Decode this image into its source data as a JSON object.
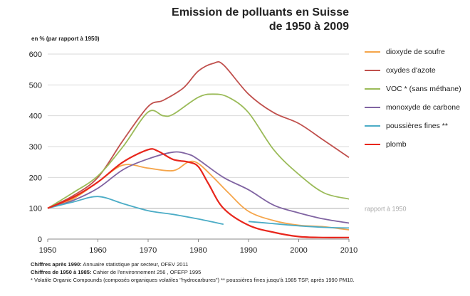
{
  "chart_data": {
    "type": "line",
    "title_line1": "Emission de polluants en Suisse",
    "title_line2": "de 1950 à 2009",
    "ylabel": "en % (par rapport à 1950)",
    "xlim": [
      1950,
      2010
    ],
    "ylim": [
      0,
      600
    ],
    "x_ticks": [
      "1950",
      "1960",
      "1970",
      "1980",
      "1990",
      "2000",
      "2010"
    ],
    "y_ticks": [
      "0",
      "100",
      "200",
      "300",
      "400",
      "500",
      "600"
    ],
    "grid": "horizontal",
    "legend_position": "right",
    "reference_line": {
      "y": 100,
      "label": "rapport à 1950",
      "color": "#bbbbbb"
    },
    "series": [
      {
        "name": "dioxyde de soufre",
        "color": "#f5a54a",
        "points": [
          [
            1950,
            100
          ],
          [
            1955,
            130
          ],
          [
            1960,
            185
          ],
          [
            1965,
            240
          ],
          [
            1970,
            230
          ],
          [
            1975,
            222
          ],
          [
            1978,
            250
          ],
          [
            1980,
            245
          ],
          [
            1983,
            200
          ],
          [
            1986,
            150
          ],
          [
            1990,
            90
          ],
          [
            1995,
            60
          ],
          [
            2000,
            45
          ],
          [
            2005,
            40
          ],
          [
            2010,
            30
          ]
        ]
      },
      {
        "name": "oxydes d'azote",
        "color": "#c0504d",
        "points": [
          [
            1950,
            100
          ],
          [
            1955,
            140
          ],
          [
            1960,
            200
          ],
          [
            1965,
            320
          ],
          [
            1970,
            430
          ],
          [
            1973,
            450
          ],
          [
            1977,
            490
          ],
          [
            1980,
            545
          ],
          [
            1983,
            570
          ],
          [
            1985,
            565
          ],
          [
            1990,
            470
          ],
          [
            1995,
            410
          ],
          [
            2000,
            375
          ],
          [
            2005,
            320
          ],
          [
            2010,
            265
          ]
        ]
      },
      {
        "name": "VOC * (sans méthane)",
        "color": "#9bbb59",
        "points": [
          [
            1950,
            100
          ],
          [
            1955,
            150
          ],
          [
            1960,
            205
          ],
          [
            1965,
            300
          ],
          [
            1970,
            412
          ],
          [
            1973,
            400
          ],
          [
            1975,
            405
          ],
          [
            1980,
            460
          ],
          [
            1983,
            470
          ],
          [
            1986,
            460
          ],
          [
            1990,
            410
          ],
          [
            1995,
            290
          ],
          [
            2000,
            210
          ],
          [
            2005,
            150
          ],
          [
            2010,
            130
          ]
        ]
      },
      {
        "name": "monoxyde de carbone",
        "color": "#8064a2",
        "points": [
          [
            1950,
            100
          ],
          [
            1955,
            125
          ],
          [
            1960,
            165
          ],
          [
            1965,
            225
          ],
          [
            1970,
            260
          ],
          [
            1975,
            282
          ],
          [
            1978,
            275
          ],
          [
            1980,
            258
          ],
          [
            1985,
            200
          ],
          [
            1990,
            160
          ],
          [
            1995,
            110
          ],
          [
            2000,
            85
          ],
          [
            2005,
            65
          ],
          [
            2010,
            52
          ]
        ]
      },
      {
        "name": "poussières fines **",
        "color": "#4bacc6",
        "points": [
          [
            1950,
            100
          ],
          [
            1955,
            120
          ],
          [
            1960,
            138
          ],
          [
            1965,
            115
          ],
          [
            1970,
            92
          ],
          [
            1975,
            80
          ],
          [
            1980,
            65
          ],
          [
            1985,
            48
          ]
        ]
      },
      {
        "name": "",
        "color": "#4bacc6",
        "points": [
          [
            1990,
            57
          ],
          [
            1995,
            50
          ],
          [
            2000,
            43
          ],
          [
            2005,
            38
          ],
          [
            2010,
            36
          ]
        ]
      },
      {
        "name": "plomb",
        "color": "#e8261c",
        "points": [
          [
            1950,
            100
          ],
          [
            1955,
            135
          ],
          [
            1960,
            185
          ],
          [
            1965,
            250
          ],
          [
            1970,
            290
          ],
          [
            1972,
            285
          ],
          [
            1975,
            258
          ],
          [
            1978,
            250
          ],
          [
            1980,
            235
          ],
          [
            1982,
            180
          ],
          [
            1985,
            100
          ],
          [
            1990,
            45
          ],
          [
            1995,
            22
          ],
          [
            2000,
            8
          ],
          [
            2005,
            5
          ],
          [
            2010,
            5
          ]
        ]
      }
    ],
    "footnotes": {
      "line1_bold": "Chiffres après 1990:",
      "line1_text": " Annuaire statistique par secteur, OFEV 2011",
      "line2_bold": "Chiffres de 1950 à 1985:",
      "line2_text": " Cahier de l'environnement 256 , OFEFP 1995",
      "line3_text": "* Volatile Organic Compounds (composés organiques volatiles \"hydrocarbures\") ** poussières fines jusqu'à 1985 TSP, après 1990 PM10."
    }
  }
}
